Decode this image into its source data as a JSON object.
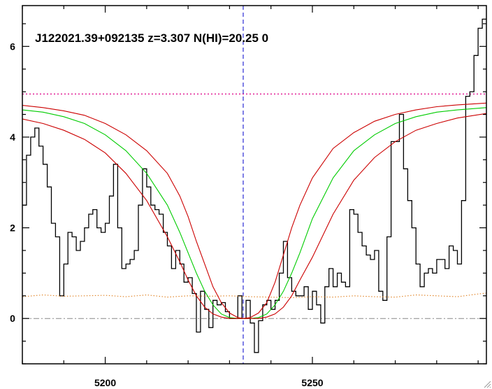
{
  "chart_data": {
    "type": "line",
    "title": "J122021.39+092135 z=3.307 N(HI)=20.25 0",
    "xlabel": "",
    "ylabel": "",
    "xlim": [
      5180,
      5292
    ],
    "ylim": [
      -1,
      6.9
    ],
    "x_ticks": [
      5200,
      5250
    ],
    "y_ticks": [
      0,
      2,
      4,
      6
    ],
    "grid": false,
    "colors": {
      "flux": "#000000",
      "fit": "#00cc00",
      "fit_bounds": "#cc0000",
      "error": "#e08020",
      "continuum": "#dd0088",
      "zero": "#888888",
      "center": "#0000cc"
    },
    "center_wavelength": 5233.3,
    "continuum_level": 4.95,
    "series": [
      {
        "style": "step",
        "color": "#000000",
        "x": [
          5180.0,
          5181.0,
          5182.0,
          5183.0,
          5184.0,
          5185.0,
          5186.0,
          5187.0,
          5188.0,
          5189.0,
          5190.0,
          5191.0,
          5192.0,
          5193.0,
          5194.0,
          5195.0,
          5196.0,
          5197.0,
          5198.0,
          5199.0,
          5200.0,
          5201.0,
          5202.0,
          5203.0,
          5204.0,
          5205.0,
          5206.0,
          5207.0,
          5208.0,
          5209.0,
          5210.0,
          5211.0,
          5212.0,
          5213.0,
          5214.0,
          5215.0,
          5216.0,
          5217.0,
          5218.0,
          5219.0,
          5220.0,
          5221.0,
          5222.0,
          5223.0,
          5224.0,
          5225.0,
          5226.0,
          5227.0,
          5228.0,
          5229.0,
          5230.0,
          5231.0,
          5232.0,
          5233.0,
          5234.0,
          5235.0,
          5236.0,
          5237.0,
          5238.0,
          5239.0,
          5240.0,
          5241.0,
          5242.0,
          5243.0,
          5244.0,
          5245.0,
          5246.0,
          5247.0,
          5248.0,
          5249.0,
          5250.0,
          5251.0,
          5252.0,
          5253.0,
          5254.0,
          5255.0,
          5256.0,
          5257.0,
          5258.0,
          5259.0,
          5260.0,
          5261.0,
          5262.0,
          5263.0,
          5264.0,
          5265.0,
          5266.0,
          5267.0,
          5268.0,
          5269.0,
          5270.0,
          5271.0,
          5272.0,
          5273.0,
          5274.0,
          5275.0,
          5276.0,
          5277.0,
          5278.0,
          5279.0,
          5280.0,
          5281.0,
          5282.0,
          5283.0,
          5284.0,
          5285.0,
          5286.0,
          5287.0,
          5288.0,
          5289.0,
          5290.0,
          5291.0
        ],
        "values": [
          2.5,
          3.6,
          4.0,
          4.2,
          3.8,
          3.4,
          2.9,
          2.1,
          1.8,
          0.5,
          1.2,
          1.9,
          1.8,
          1.5,
          1.7,
          2.0,
          2.3,
          2.4,
          2.0,
          1.9,
          2.1,
          2.7,
          3.4,
          2.0,
          1.1,
          1.2,
          1.3,
          1.5,
          2.5,
          3.3,
          2.9,
          2.5,
          2.4,
          2.3,
          1.9,
          1.6,
          1.1,
          1.5,
          1.2,
          0.8,
          0.9,
          0.55,
          -0.3,
          0.6,
          0.2,
          -0.2,
          0.4,
          0.3,
          0.35,
          0.15,
          0.0,
          0.0,
          0.5,
          0.0,
          0.4,
          -0.1,
          -0.75,
          -0.05,
          0.3,
          0.4,
          0.2,
          0.4,
          1.0,
          1.7,
          0.9,
          0.6,
          0.5,
          0.5,
          0.7,
          0.2,
          0.6,
          0.3,
          -0.1,
          0.7,
          1.1,
          0.7,
          1.0,
          0.8,
          0.7,
          2.4,
          2.3,
          1.9,
          1.6,
          1.4,
          1.3,
          1.5,
          0.6,
          0.4,
          1.8,
          3.9,
          3.9,
          4.5,
          3.3,
          2.6,
          2.0,
          1.2,
          0.7,
          1.0,
          1.1,
          1.0,
          1.3,
          1.3,
          1.1,
          1.6,
          1.5,
          1.2,
          2.6,
          4.9,
          5.0,
          5.8,
          6.4,
          6.6
        ]
      },
      {
        "style": "dotted",
        "color": "#e08020",
        "x": [
          5180,
          5185,
          5190,
          5195,
          5200,
          5205,
          5210,
          5215,
          5220,
          5225,
          5230,
          5235,
          5240,
          5245,
          5250,
          5255,
          5260,
          5265,
          5270,
          5275,
          5280,
          5285,
          5290,
          5292
        ],
        "values": [
          0.48,
          0.52,
          0.49,
          0.5,
          0.51,
          0.48,
          0.52,
          0.47,
          0.5,
          0.49,
          0.5,
          0.48,
          0.47,
          0.46,
          0.48,
          0.47,
          0.5,
          0.48,
          0.47,
          0.52,
          0.5,
          0.48,
          0.54,
          0.56
        ]
      },
      {
        "style": "solid",
        "color": "#00cc00",
        "x": [
          5180,
          5185,
          5190,
          5195,
          5200,
          5205,
          5210,
          5215,
          5218,
          5220,
          5222,
          5224,
          5226,
          5228,
          5230,
          5232,
          5233.3,
          5235,
          5237,
          5239,
          5241,
          5243,
          5245,
          5247,
          5250,
          5255,
          5260,
          5265,
          5270,
          5275,
          5280,
          5285,
          5292
        ],
        "values": [
          4.6,
          4.55,
          4.45,
          4.3,
          4.05,
          3.7,
          3.2,
          2.5,
          1.9,
          1.45,
          1.0,
          0.6,
          0.3,
          0.1,
          0.02,
          0.0,
          0.0,
          0.0,
          0.02,
          0.1,
          0.3,
          0.6,
          1.0,
          1.45,
          2.2,
          3.1,
          3.7,
          4.05,
          4.3,
          4.45,
          4.55,
          4.6,
          4.65
        ]
      },
      {
        "style": "solid",
        "color": "#cc0000",
        "x": [
          5180,
          5185,
          5190,
          5195,
          5200,
          5205,
          5210,
          5215,
          5218,
          5220,
          5222,
          5224,
          5226,
          5228,
          5230,
          5232,
          5233.3,
          5235,
          5237,
          5239,
          5241,
          5243,
          5245,
          5247,
          5250,
          5255,
          5260,
          5265,
          5270,
          5275,
          5280,
          5285,
          5292
        ],
        "values": [
          4.7,
          4.65,
          4.58,
          4.48,
          4.3,
          4.05,
          3.7,
          3.2,
          2.7,
          2.25,
          1.7,
          1.2,
          0.7,
          0.35,
          0.12,
          0.02,
          0.0,
          0.02,
          0.12,
          0.35,
          0.8,
          1.4,
          2.0,
          2.5,
          3.1,
          3.75,
          4.1,
          4.35,
          4.5,
          4.6,
          4.67,
          4.71,
          4.75
        ]
      },
      {
        "style": "solid",
        "color": "#cc0000",
        "x": [
          5180,
          5185,
          5190,
          5195,
          5200,
          5205,
          5210,
          5215,
          5218,
          5220,
          5222,
          5224,
          5226,
          5228,
          5230,
          5232,
          5233.3,
          5235,
          5237,
          5239,
          5241,
          5243,
          5245,
          5247,
          5250,
          5255,
          5260,
          5265,
          5270,
          5275,
          5280,
          5285,
          5292
        ],
        "values": [
          4.4,
          4.3,
          4.15,
          3.95,
          3.65,
          3.2,
          2.6,
          1.8,
          1.25,
          0.85,
          0.5,
          0.25,
          0.1,
          0.03,
          0.0,
          0.0,
          0.0,
          0.0,
          0.0,
          0.03,
          0.1,
          0.25,
          0.5,
          0.85,
          1.35,
          2.3,
          3.05,
          3.55,
          3.9,
          4.15,
          4.3,
          4.42,
          4.52
        ]
      }
    ]
  }
}
